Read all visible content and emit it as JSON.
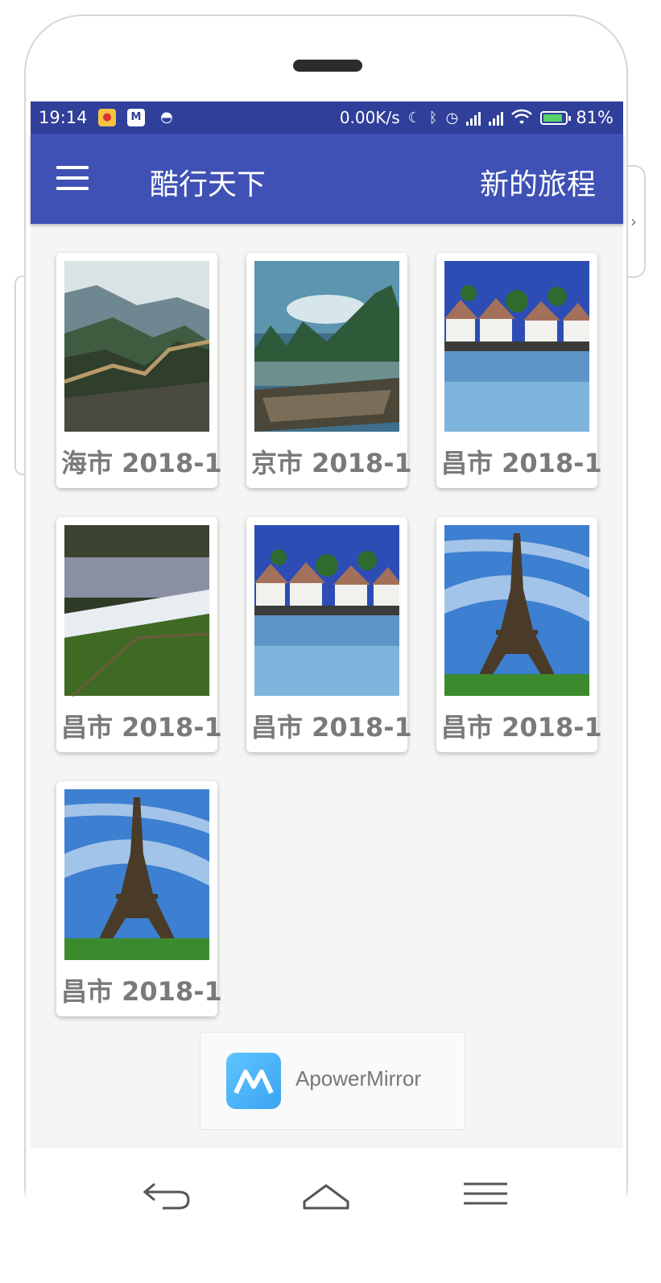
{
  "status_bar": {
    "time": "19:14",
    "net_speed": "0.00K/s",
    "battery": "81%",
    "icons": [
      "weibo-icon",
      "apowermirror-icon",
      "robot-icon",
      "moon-icon",
      "bluetooth-icon",
      "alarm-icon",
      "signal-icon",
      "signal-icon",
      "wifi-icon",
      "battery-icon"
    ]
  },
  "app_bar": {
    "title": "酷行天下",
    "action": "新的旅程"
  },
  "cards": [
    {
      "caption": "海市 2018-1",
      "image": "great-wall"
    },
    {
      "caption": "京市 2018-1",
      "image": "guilin-river"
    },
    {
      "caption": "昌市 2018-1",
      "image": "water-huts"
    },
    {
      "caption": "昌市 2018-1",
      "image": "waterfall"
    },
    {
      "caption": "昌市 2018-1",
      "image": "water-huts"
    },
    {
      "caption": "昌市 2018-1",
      "image": "eiffel-tower"
    },
    {
      "caption": "昌市 2018-1",
      "image": "eiffel-tower"
    }
  ],
  "toast": {
    "app_name": "ApowerMirror"
  },
  "nav_bar": {
    "icons": [
      "back-icon",
      "home-icon",
      "menu-icon"
    ]
  },
  "colors": {
    "status_bar": "#2f3f9a",
    "app_bar": "#3f51b5",
    "background": "#f5f5f4"
  }
}
